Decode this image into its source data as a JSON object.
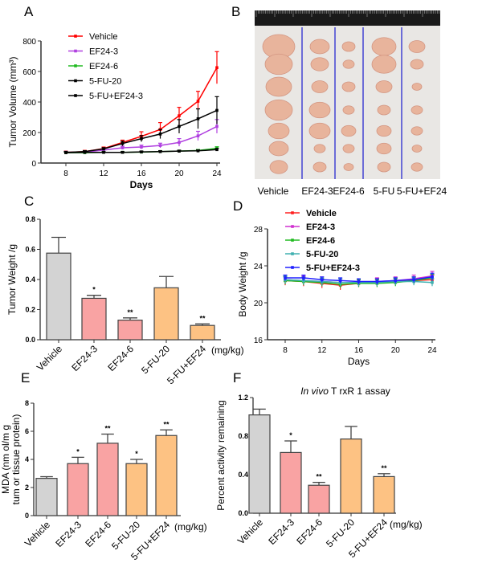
{
  "panels": {
    "A": "A",
    "B": "B",
    "C": "C",
    "D": "D",
    "E": "E",
    "F": "F"
  },
  "photo": {
    "labels": [
      "Vehicle",
      "EF24-3",
      "EF24-6",
      "5-FU",
      "5-FU+EF24"
    ]
  },
  "unit_note": "(mg/kg)",
  "colors": {
    "gray": "#d3d3d3",
    "pink": "#f9a3a3",
    "orange": "#fdc283"
  },
  "chart_data": [
    {
      "id": "A",
      "type": "line",
      "title": "",
      "xlabel": "Days",
      "ylabel": "Tumor Volume (mm³)",
      "x": [
        8,
        10,
        12,
        14,
        16,
        18,
        20,
        22,
        24
      ],
      "xticks": [
        8,
        12,
        16,
        20,
        24
      ],
      "yticks": [
        0,
        200,
        400,
        600,
        800
      ],
      "xlim": [
        6,
        24
      ],
      "ylim": [
        0,
        800
      ],
      "legend": "top-left",
      "series": [
        {
          "name": "Vehicle",
          "color": "#ff0000",
          "values": [
            70,
            75,
            95,
            135,
            175,
            220,
            310,
            405,
            625
          ],
          "err": [
            8,
            8,
            10,
            15,
            30,
            45,
            55,
            65,
            105
          ]
        },
        {
          "name": "EF24-3",
          "color": "#b040e0",
          "values": [
            70,
            72,
            85,
            100,
            105,
            115,
            135,
            178,
            240
          ],
          "err": [
            6,
            6,
            8,
            10,
            12,
            15,
            25,
            30,
            45
          ]
        },
        {
          "name": "EF24-6",
          "color": "#22bb22",
          "values": [
            68,
            68,
            70,
            70,
            72,
            75,
            78,
            82,
            97
          ],
          "err": [
            4,
            4,
            5,
            5,
            5,
            6,
            6,
            7,
            10
          ]
        },
        {
          "name": "5-FU-20",
          "color": "#000000",
          "values": [
            70,
            75,
            93,
            128,
            160,
            190,
            240,
            290,
            345
          ],
          "err": [
            6,
            6,
            8,
            15,
            20,
            30,
            45,
            65,
            90
          ]
        },
        {
          "name": "5-FU+EF24-3",
          "color": "#000000",
          "values": [
            68,
            70,
            70,
            70,
            73,
            75,
            78,
            80,
            88
          ],
          "err": [
            4,
            4,
            4,
            4,
            5,
            5,
            5,
            6,
            8
          ]
        }
      ]
    },
    {
      "id": "C",
      "type": "bar",
      "xlabel": "",
      "ylabel": "Tumor Weight /g",
      "ylim": [
        0,
        0.8
      ],
      "yticks": [
        "0.0",
        "0.2",
        "0.4",
        "0.6",
        "0.8"
      ],
      "categories": [
        "Vehicle",
        "EF24-3",
        "EF24-6",
        "5-FU-20",
        "5-FU+EF24"
      ],
      "values": [
        0.575,
        0.275,
        0.13,
        0.345,
        0.095
      ],
      "err": [
        0.105,
        0.02,
        0.015,
        0.075,
        0.01
      ],
      "significance": [
        "",
        "*",
        "**",
        "",
        "**"
      ],
      "fills": [
        "gray",
        "pink",
        "pink",
        "orange",
        "orange"
      ]
    },
    {
      "id": "D",
      "type": "line",
      "title": "",
      "xlabel": "Days",
      "ylabel": "Body Weight /g",
      "x": [
        8,
        10,
        12,
        14,
        16,
        18,
        20,
        22,
        24
      ],
      "xticks": [
        8,
        12,
        16,
        20,
        24
      ],
      "yticks": [
        16,
        20,
        24,
        28
      ],
      "xlim": [
        6,
        24
      ],
      "ylim": [
        16,
        28
      ],
      "legend": "top-left",
      "series": [
        {
          "name": "Vehicle",
          "color": "#ff2020",
          "values": [
            22.4,
            22.3,
            22.1,
            21.9,
            22.1,
            22.2,
            22.3,
            22.4,
            22.5
          ],
          "err": [
            0.5,
            0.5,
            0.5,
            0.5,
            0.4,
            0.4,
            0.4,
            0.4,
            0.5
          ]
        },
        {
          "name": "EF24-3",
          "color": "#d030d0",
          "values": [
            22.5,
            22.4,
            22.3,
            22.2,
            22.2,
            22.3,
            22.4,
            22.6,
            22.9
          ],
          "err": [
            0.5,
            0.5,
            0.5,
            0.4,
            0.4,
            0.4,
            0.4,
            0.4,
            0.5
          ]
        },
        {
          "name": "EF24-6",
          "color": "#22bb22",
          "values": [
            22.4,
            22.3,
            22.2,
            22.0,
            22.1,
            22.1,
            22.2,
            22.4,
            22.7
          ],
          "err": [
            0.4,
            0.4,
            0.4,
            0.4,
            0.4,
            0.4,
            0.4,
            0.4,
            0.4
          ]
        },
        {
          "name": "5-FU-20",
          "color": "#40b0b0",
          "values": [
            22.5,
            22.4,
            22.3,
            22.2,
            22.2,
            22.2,
            22.3,
            22.3,
            22.2
          ],
          "err": [
            0.4,
            0.4,
            0.4,
            0.4,
            0.4,
            0.4,
            0.4,
            0.4,
            0.4
          ]
        },
        {
          "name": "5-FU+EF24-3",
          "color": "#2020ff",
          "values": [
            22.7,
            22.7,
            22.5,
            22.4,
            22.3,
            22.3,
            22.4,
            22.5,
            22.8
          ],
          "err": [
            0.3,
            0.3,
            0.3,
            0.3,
            0.3,
            0.3,
            0.3,
            0.3,
            0.4
          ]
        }
      ]
    },
    {
      "id": "E",
      "type": "bar",
      "xlabel": "",
      "ylabel": [
        "MDA (nm ol/m g",
        "tum or tissue  protein)"
      ],
      "ylim": [
        0,
        8
      ],
      "yticks": [
        "0",
        "2",
        "4",
        "6",
        "8"
      ],
      "categories": [
        "Vehicle",
        "EF24-3",
        "EF24-6",
        "5-FU-20",
        "5-FU+EF24"
      ],
      "values": [
        2.65,
        3.7,
        5.15,
        3.7,
        5.7
      ],
      "err": [
        0.12,
        0.45,
        0.65,
        0.3,
        0.4
      ],
      "significance": [
        "",
        "*",
        "**",
        "*",
        "**"
      ],
      "fills": [
        "gray",
        "pink",
        "pink",
        "orange",
        "orange"
      ]
    },
    {
      "id": "F",
      "type": "bar",
      "title": "In vivo TrxR1 assay",
      "title_italic": "In vivo",
      "title_rest": " T rxR 1  assay",
      "xlabel": "",
      "ylabel": "Percent activity remaining",
      "ylim": [
        0,
        1.2
      ],
      "yticks": [
        "0.0",
        "0.4",
        "0.8",
        "1.2"
      ],
      "categories": [
        "Vehicle",
        "EF24-3",
        "EF24-6",
        "5-FU-20",
        "5-FU+EF24"
      ],
      "values": [
        1.02,
        0.63,
        0.29,
        0.77,
        0.38
      ],
      "err": [
        0.06,
        0.12,
        0.03,
        0.13,
        0.03
      ],
      "significance": [
        "",
        "*",
        "**",
        "",
        "**"
      ],
      "fills": [
        "gray",
        "pink",
        "pink",
        "orange",
        "orange"
      ]
    }
  ]
}
